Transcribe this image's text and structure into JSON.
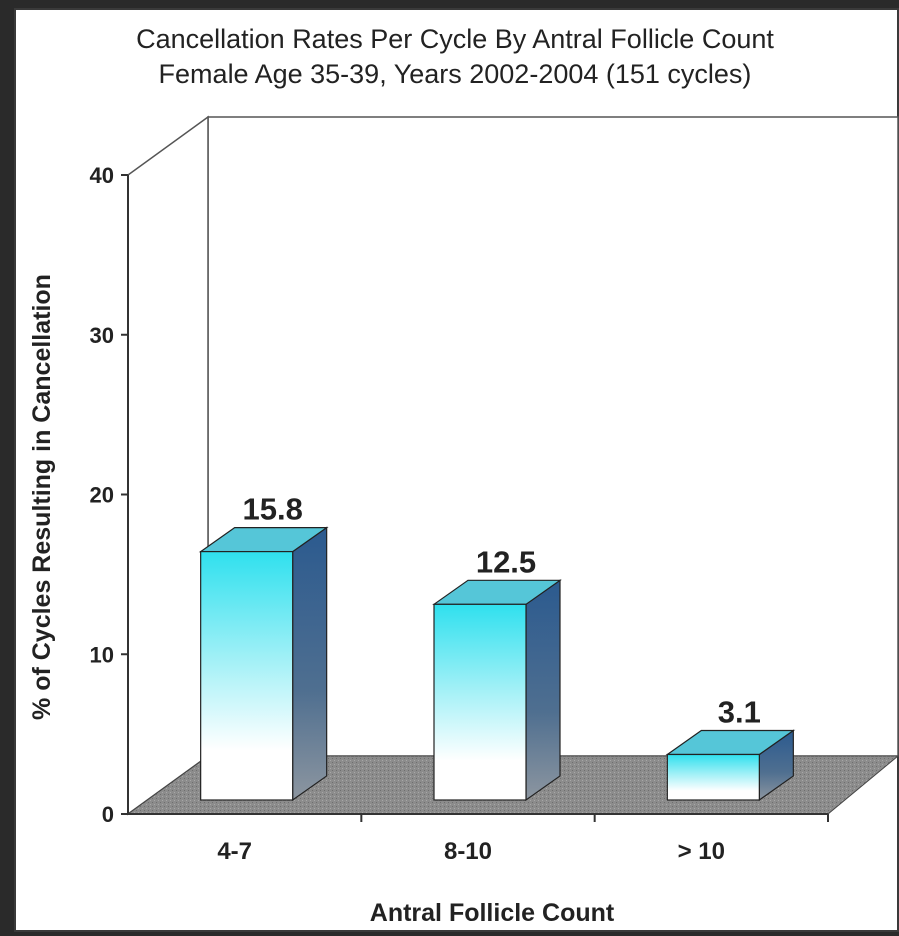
{
  "chart_data": {
    "type": "bar",
    "title": "Cancellation Rates Per Cycle By Antral Follicle Count",
    "subtitle": "Female Age 35-39, Years 2002-2004 (151 cycles)",
    "xlabel": "Antral Follicle Count",
    "ylabel": "% of Cycles Resulting in Cancellation",
    "categories": [
      "4-7",
      "8-10",
      "> 10"
    ],
    "values": [
      15.8,
      12.5,
      3.1
    ],
    "data_labels": [
      "15.8",
      "12.5",
      "3.1"
    ],
    "ylim": [
      0,
      40
    ],
    "yticks": [
      "0",
      "10",
      "20",
      "30",
      "40"
    ],
    "grid": false,
    "legend": "none",
    "style": "3d",
    "colors": {
      "bar_top": "#2fe0ee",
      "bar_bottom": "#ffffff",
      "bar_side": "#2f5f93",
      "bar_cap": "#55c6d8",
      "floor": "#8a8a8a"
    }
  }
}
